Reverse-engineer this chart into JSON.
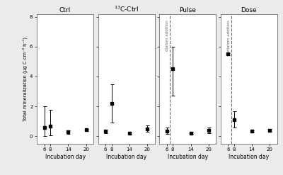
{
  "panels": [
    {
      "title": "Ctrl",
      "x": [
        6,
        8,
        14,
        20
      ],
      "y": [
        0.55,
        0.65,
        0.28,
        0.42
      ],
      "yerr_low": [
        0.55,
        0.6,
        0.12,
        0.08
      ],
      "yerr_high": [
        1.45,
        1.1,
        0.12,
        0.08
      ],
      "dashed_line": null,
      "diatom_label": null
    },
    {
      "title": "$^{13}$C-Ctrl",
      "x": [
        6,
        8,
        14,
        20
      ],
      "y": [
        0.32,
        2.2,
        0.18,
        0.48
      ],
      "yerr_low": [
        0.12,
        1.3,
        0.06,
        0.18
      ],
      "yerr_high": [
        0.12,
        1.3,
        0.06,
        0.22
      ],
      "dashed_line": null,
      "diatom_label": null
    },
    {
      "title": "Pulse",
      "x": [
        6,
        8,
        14,
        20
      ],
      "y": [
        0.35,
        4.5,
        0.18,
        0.38
      ],
      "yerr_low": [
        0.2,
        1.8,
        0.04,
        0.18
      ],
      "yerr_high": [
        0.2,
        1.5,
        0.04,
        0.18
      ],
      "dashed_line": 7.0,
      "diatom_label": "diatom addition"
    },
    {
      "title": "Dose",
      "x": [
        6,
        8,
        14,
        20
      ],
      "y": [
        5.5,
        1.1,
        0.32,
        0.4
      ],
      "yerr_low": [
        0.05,
        0.55,
        0.08,
        0.1
      ],
      "yerr_high": [
        0.05,
        0.55,
        0.08,
        0.1
      ],
      "dashed_line": 7.0,
      "diatom_label": "diatom addition"
    }
  ],
  "ylim": [
    -0.5,
    8.2
  ],
  "yticks": [
    0,
    2,
    4,
    6,
    8
  ],
  "xticks": [
    6,
    8,
    14,
    20
  ],
  "ylabel": "Total mineralization (µg C cm⁻³ h⁻¹)",
  "xlabel": "Incubation day",
  "background_color": "#ebebeb",
  "panel_background": "#ffffff"
}
